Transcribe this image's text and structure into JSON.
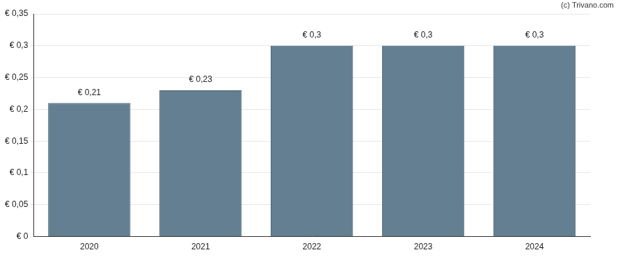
{
  "chart_data": {
    "type": "bar",
    "annotations": [
      "(c) Trivano.com"
    ],
    "categories": [
      "2020",
      "2021",
      "2022",
      "2023",
      "2024"
    ],
    "values": [
      0.21,
      0.23,
      0.3,
      0.3,
      0.3
    ],
    "value_labels": [
      "€ 0,21",
      "€ 0,23",
      "€ 0,3",
      "€ 0,3",
      "€ 0,3"
    ],
    "color": "#647f92",
    "ylim": [
      0,
      0.35
    ],
    "yticks": [
      {
        "value": 0,
        "label": "€ 0"
      },
      {
        "value": 0.05,
        "label": "€ 0,05"
      },
      {
        "value": 0.1,
        "label": "€ 0,1"
      },
      {
        "value": 0.15,
        "label": "€ 0,15"
      },
      {
        "value": 0.2,
        "label": "€ 0,2"
      },
      {
        "value": 0.25,
        "label": "€ 0,25"
      },
      {
        "value": 0.3,
        "label": "€ 0,3"
      },
      {
        "value": 0.35,
        "label": "€ 0,35"
      }
    ],
    "grid": true,
    "data_labels": true
  }
}
